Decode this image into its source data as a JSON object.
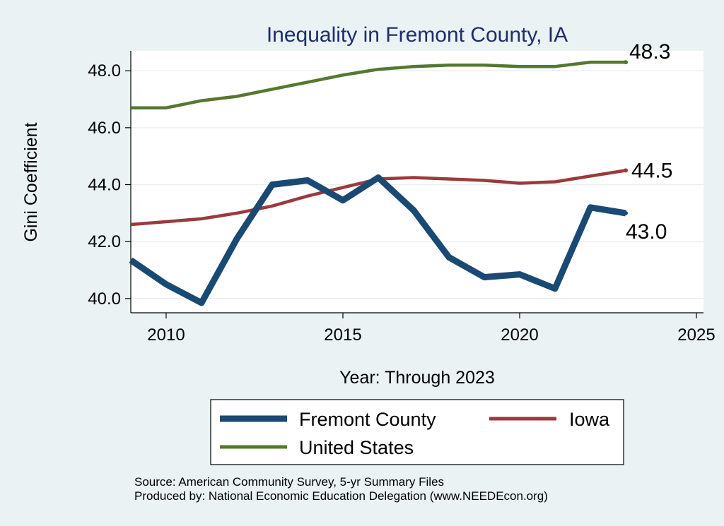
{
  "chart_data": {
    "type": "line",
    "title": "Inequality in Fremont County, IA",
    "xlabel": "Year: Through 2023",
    "ylabel": "Gini Coefficient",
    "xlim": [
      2009,
      2025.2
    ],
    "ylim": [
      39.5,
      48.7
    ],
    "xticks": [
      2010,
      2015,
      2020,
      2025
    ],
    "xtick_labels": [
      "2010",
      "2015",
      "2020",
      "2025"
    ],
    "yticks": [
      40,
      42,
      44,
      46,
      48
    ],
    "ytick_labels": [
      "40.0",
      "42.0",
      "44.0",
      "46.0",
      "48.0"
    ],
    "grid": true,
    "x": [
      2009,
      2010,
      2011,
      2012,
      2013,
      2014,
      2015,
      2016,
      2017,
      2018,
      2019,
      2020,
      2021,
      2022,
      2023
    ],
    "series": [
      {
        "key": "fremont",
        "name": "Fremont County",
        "color": "#1a4a73",
        "values": [
          41.35,
          40.5,
          39.85,
          42.1,
          44.0,
          44.15,
          43.45,
          44.25,
          43.1,
          41.45,
          40.75,
          40.85,
          40.35,
          43.2,
          43.0
        ],
        "end_label": "43.0"
      },
      {
        "key": "iowa",
        "name": "Iowa",
        "color": "#9b3a3c",
        "values": [
          42.6,
          42.7,
          42.8,
          43.0,
          43.25,
          43.6,
          43.9,
          44.2,
          44.25,
          44.2,
          44.15,
          44.05,
          44.1,
          44.3,
          44.5
        ],
        "end_label": "44.5"
      },
      {
        "key": "us",
        "name": "United States",
        "color": "#55782e",
        "values": [
          46.7,
          46.7,
          46.95,
          47.1,
          47.35,
          47.6,
          47.85,
          48.05,
          48.15,
          48.2,
          48.2,
          48.15,
          48.15,
          48.3,
          48.3
        ],
        "end_label": "48.3"
      }
    ],
    "legend": {
      "placement": "bottom",
      "entries": [
        "Fremont County",
        "Iowa",
        "United States"
      ]
    },
    "source_lines": [
      "Source: American Community Survey, 5-yr Summary Files",
      "Produced by: National Economic Education Delegation (www.NEEDEcon.org)"
    ]
  }
}
